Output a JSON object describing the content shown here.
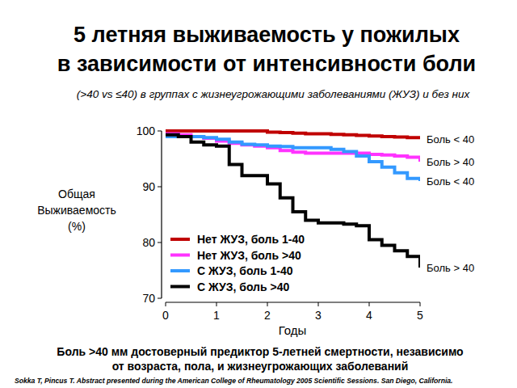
{
  "chart_data": {
    "type": "line",
    "line_style": "steps",
    "title": [
      "5 летняя выживаемость у пожилых",
      "в зависимости от интенсивности боли"
    ],
    "subtitle": "(>40 vs ≤40) в группах с жизнеугрожающими заболеваниями (ЖУЗ) и без них",
    "y_label": "Общая Выживаемость (%)",
    "x_label": "Годы",
    "x": [
      0,
      0.25,
      0.5,
      0.75,
      1,
      1.25,
      1.5,
      1.75,
      2,
      2.25,
      2.5,
      2.75,
      3,
      3.25,
      3.5,
      3.75,
      4,
      4.25,
      4.5,
      4.75,
      5
    ],
    "series": [
      {
        "name": "Нет ЖУЗ, боль 1-40",
        "color": "#c00000",
        "end_label": "Боль < 40",
        "values": [
          100,
          100,
          100,
          100,
          100,
          100,
          100,
          100,
          99.8,
          99.7,
          99.6,
          99.5,
          99.5,
          99.4,
          99.3,
          99.2,
          99.1,
          99,
          98.9,
          98.8,
          98.5
        ]
      },
      {
        "name": "Нет ЖУЗ, боль >40",
        "color": "#ff33ff",
        "end_label": "Боль > 40",
        "values": [
          99.5,
          99.3,
          99,
          98.7,
          98.2,
          97.8,
          97.5,
          97.3,
          97,
          96.5,
          96.2,
          96,
          96,
          96,
          96,
          96,
          95.8,
          95.7,
          95.5,
          95.3,
          94.5
        ]
      },
      {
        "name": "С ЖУЗ, боль 1-40",
        "color": "#3399ff",
        "end_label": "Боль < 40",
        "values": [
          99,
          99,
          99,
          98.8,
          98.5,
          98,
          97.6,
          97.5,
          97.3,
          97.2,
          97,
          97,
          97,
          96.7,
          96.3,
          95.5,
          94.5,
          93.5,
          92.5,
          91.5,
          91
        ]
      },
      {
        "name": "С ЖУЗ, боль >40",
        "color": "#000000",
        "end_label": "Боль > 40",
        "values": [
          99.3,
          99,
          98,
          97.5,
          97.3,
          94,
          92,
          92,
          90.5,
          88,
          85.5,
          84,
          83.5,
          83.5,
          83.3,
          83,
          80.5,
          79.5,
          78.5,
          77.5,
          75.5
        ]
      }
    ],
    "xlim": [
      0,
      5
    ],
    "xticks": [
      0,
      1,
      2,
      3,
      4,
      5
    ],
    "ylim": [
      70,
      100
    ],
    "yticks": [
      70,
      80,
      90,
      100
    ],
    "grid": false,
    "legend": "lower-left",
    "footnote": [
      "Боль >40 мм достоверный предиктор  5-летней смертности, независимо",
      "от возраста, пола, и жизнеугрожающих заболеваний"
    ],
    "source": "Sokka T, Pincus T. Abstract presented during the American College of Rheumatology 2005 Scientific Sessions.  San Diego, California."
  }
}
